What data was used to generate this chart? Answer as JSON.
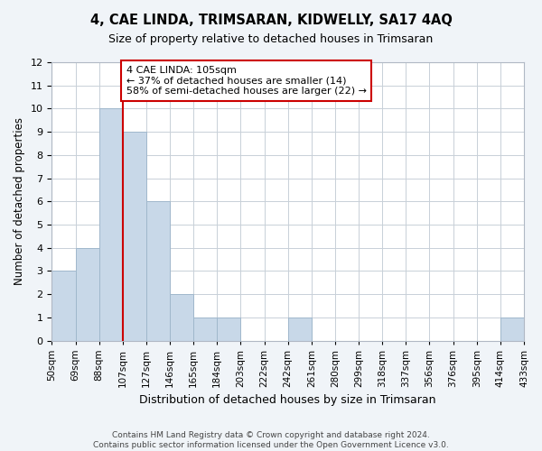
{
  "title1": "4, CAE LINDA, TRIMSARAN, KIDWELLY, SA17 4AQ",
  "title2": "Size of property relative to detached houses in Trimsaran",
  "xlabel": "Distribution of detached houses by size in Trimsaran",
  "ylabel": "Number of detached properties",
  "bin_labels": [
    "50sqm",
    "69sqm",
    "88sqm",
    "107sqm",
    "127sqm",
    "146sqm",
    "165sqm",
    "184sqm",
    "203sqm",
    "222sqm",
    "242sqm",
    "261sqm",
    "280sqm",
    "299sqm",
    "318sqm",
    "337sqm",
    "356sqm",
    "376sqm",
    "395sqm",
    "414sqm",
    "433sqm"
  ],
  "bar_heights": [
    3,
    4,
    10,
    9,
    6,
    2,
    1,
    1,
    0,
    0,
    1,
    0,
    0,
    0,
    0,
    0,
    0,
    0,
    0,
    1
  ],
  "bar_color": "#c8d8e8",
  "bar_edge_color": "#a0b8cc",
  "vline_x_index": 3,
  "vline_color": "#cc0000",
  "annotation_lines": [
    "4 CAE LINDA: 105sqm",
    "← 37% of detached houses are smaller (14)",
    "58% of semi-detached houses are larger (22) →"
  ],
  "annotation_box_color": "#ffffff",
  "annotation_box_edge": "#cc0000",
  "ylim": [
    0,
    12
  ],
  "yticks": [
    0,
    1,
    2,
    3,
    4,
    5,
    6,
    7,
    8,
    9,
    10,
    11,
    12
  ],
  "footer_lines": [
    "Contains HM Land Registry data © Crown copyright and database right 2024.",
    "Contains public sector information licensed under the Open Government Licence v3.0."
  ],
  "bg_color": "#f0f4f8",
  "plot_bg_color": "#ffffff",
  "grid_color": "#c8d0d8"
}
